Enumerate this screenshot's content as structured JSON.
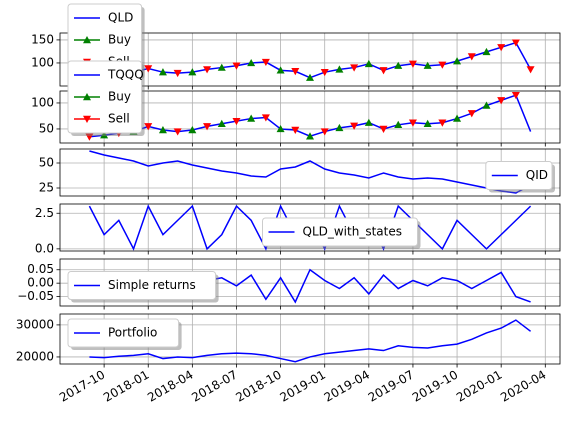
{
  "chart_data": [
    {
      "type": "line",
      "x": [
        "2017-09",
        "2017-10",
        "2017-11",
        "2017-12",
        "2018-01",
        "2018-02",
        "2018-03",
        "2018-04",
        "2018-05",
        "2018-06",
        "2018-07",
        "2018-08",
        "2018-09",
        "2018-10",
        "2018-11",
        "2018-12",
        "2019-01",
        "2019-02",
        "2019-03",
        "2019-04",
        "2019-05",
        "2019-06",
        "2019-07",
        "2019-08",
        "2019-09",
        "2019-10",
        "2019-11",
        "2019-12",
        "2020-01",
        "2020-02",
        "2020-03"
      ],
      "series": [
        {
          "name": "QLD",
          "color": "#0000ff",
          "values": [
            70,
            74,
            78,
            80,
            88,
            80,
            78,
            80,
            86,
            90,
            94,
            100,
            102,
            84,
            82,
            68,
            80,
            86,
            90,
            98,
            84,
            94,
            98,
            94,
            96,
            104,
            114,
            124,
            134,
            144,
            86
          ]
        },
        {
          "name": "Buy",
          "color": "#008000",
          "marker": "up",
          "values": [
            null,
            74,
            null,
            80,
            null,
            80,
            null,
            80,
            null,
            90,
            null,
            100,
            null,
            84,
            null,
            68,
            null,
            86,
            null,
            98,
            null,
            94,
            null,
            94,
            null,
            104,
            null,
            124,
            null,
            null,
            null
          ]
        },
        {
          "name": "Sell",
          "color": "#ff0000",
          "marker": "down",
          "values": [
            70,
            null,
            78,
            null,
            88,
            null,
            78,
            null,
            86,
            null,
            94,
            null,
            102,
            null,
            82,
            null,
            80,
            null,
            90,
            null,
            84,
            null,
            98,
            null,
            96,
            null,
            114,
            null,
            134,
            144,
            86
          ]
        }
      ],
      "xlim": [
        "2017-07",
        "2020-05"
      ],
      "xticks": [
        "2017-10",
        "2018-01",
        "2018-04",
        "2018-07",
        "2018-10",
        "2019-01",
        "2019-04",
        "2019-07",
        "2019-10",
        "2020-01",
        "2020-04"
      ],
      "ylim": [
        50,
        165
      ],
      "yticks": [
        100,
        150
      ],
      "grid": true,
      "legend": "upper left"
    },
    {
      "type": "line",
      "x": [
        "2017-09",
        "2017-10",
        "2017-11",
        "2017-12",
        "2018-01",
        "2018-02",
        "2018-03",
        "2018-04",
        "2018-05",
        "2018-06",
        "2018-07",
        "2018-08",
        "2018-09",
        "2018-10",
        "2018-11",
        "2018-12",
        "2019-01",
        "2019-02",
        "2019-03",
        "2019-04",
        "2019-05",
        "2019-06",
        "2019-07",
        "2019-08",
        "2019-09",
        "2019-10",
        "2019-11",
        "2019-12",
        "2020-01",
        "2020-02",
        "2020-03"
      ],
      "series": [
        {
          "name": "TQQQ",
          "color": "#0000ff",
          "values": [
            35,
            38,
            42,
            45,
            55,
            48,
            45,
            48,
            55,
            60,
            65,
            70,
            72,
            50,
            48,
            36,
            45,
            52,
            56,
            62,
            50,
            58,
            62,
            60,
            62,
            70,
            80,
            95,
            105,
            115,
            45
          ]
        },
        {
          "name": "Buy",
          "color": "#008000",
          "marker": "up",
          "values": [
            null,
            38,
            null,
            45,
            null,
            48,
            null,
            48,
            null,
            60,
            null,
            70,
            null,
            50,
            null,
            36,
            null,
            52,
            null,
            62,
            null,
            58,
            null,
            60,
            null,
            70,
            null,
            95,
            null,
            null,
            null
          ]
        },
        {
          "name": "Sell",
          "color": "#ff0000",
          "marker": "down",
          "values": [
            35,
            null,
            42,
            null,
            55,
            null,
            45,
            null,
            55,
            null,
            65,
            null,
            72,
            null,
            48,
            null,
            45,
            null,
            56,
            null,
            50,
            null,
            62,
            null,
            62,
            null,
            80,
            null,
            105,
            115,
            null
          ]
        }
      ],
      "xlim": [
        "2017-07",
        "2020-05"
      ],
      "xticks": [
        "2017-10",
        "2018-01",
        "2018-04",
        "2018-07",
        "2018-10",
        "2019-01",
        "2019-04",
        "2019-07",
        "2019-10",
        "2020-01",
        "2020-04"
      ],
      "ylim": [
        23,
        123
      ],
      "yticks": [
        50,
        100
      ],
      "grid": true,
      "legend": "upper left"
    },
    {
      "type": "line",
      "x": [
        "2017-09",
        "2017-10",
        "2017-11",
        "2017-12",
        "2018-01",
        "2018-02",
        "2018-03",
        "2018-04",
        "2018-05",
        "2018-06",
        "2018-07",
        "2018-08",
        "2018-09",
        "2018-10",
        "2018-11",
        "2018-12",
        "2019-01",
        "2019-02",
        "2019-03",
        "2019-04",
        "2019-05",
        "2019-06",
        "2019-07",
        "2019-08",
        "2019-09",
        "2019-10",
        "2019-11",
        "2019-12",
        "2020-01",
        "2020-02",
        "2020-03"
      ],
      "series": [
        {
          "name": "QID",
          "color": "#0000ff",
          "values": [
            62,
            58,
            55,
            52,
            47,
            50,
            52,
            48,
            45,
            42,
            40,
            37,
            36,
            44,
            46,
            52,
            44,
            40,
            38,
            35,
            40,
            36,
            34,
            35,
            34,
            31,
            28,
            25,
            22,
            20,
            28
          ]
        }
      ],
      "xlim": [
        "2017-07",
        "2020-05"
      ],
      "xticks": [
        "2017-10",
        "2018-01",
        "2018-04",
        "2018-07",
        "2018-10",
        "2019-01",
        "2019-04",
        "2019-07",
        "2019-10",
        "2020-01",
        "2020-04"
      ],
      "ylim": [
        17,
        64
      ],
      "yticks": [
        25,
        50
      ],
      "grid": true,
      "legend": "center right"
    },
    {
      "type": "line",
      "x": [
        "2017-09",
        "2017-10",
        "2017-11",
        "2017-12",
        "2018-01",
        "2018-02",
        "2018-03",
        "2018-04",
        "2018-05",
        "2018-06",
        "2018-07",
        "2018-08",
        "2018-09",
        "2018-10",
        "2018-11",
        "2018-12",
        "2019-01",
        "2019-02",
        "2019-03",
        "2019-04",
        "2019-05",
        "2019-06",
        "2019-07",
        "2019-08",
        "2019-09",
        "2019-10",
        "2019-11",
        "2019-12",
        "2020-01",
        "2020-02",
        "2020-03"
      ],
      "series": [
        {
          "name": "QLD_with_states",
          "color": "#0000ff",
          "values": [
            3,
            1,
            2,
            0,
            3,
            1,
            2,
            3,
            0,
            1,
            3,
            2,
            0,
            3,
            1,
            2,
            0,
            3,
            1,
            2,
            0,
            3,
            2,
            1,
            0,
            2,
            1,
            0,
            1,
            2,
            3
          ]
        }
      ],
      "xlim": [
        "2017-07",
        "2020-05"
      ],
      "xticks": [
        "2017-10",
        "2018-01",
        "2018-04",
        "2018-07",
        "2018-10",
        "2019-01",
        "2019-04",
        "2019-07",
        "2019-10",
        "2020-01",
        "2020-04"
      ],
      "ylim": [
        -0.15,
        3.15
      ],
      "yticks": [
        {
          "value": 0,
          "label": "0.0"
        },
        {
          "value": 2.5,
          "label": "2.5"
        }
      ],
      "grid": true,
      "legend": "lower center"
    },
    {
      "type": "line",
      "x": [
        "2017-09",
        "2017-10",
        "2017-11",
        "2017-12",
        "2018-01",
        "2018-02",
        "2018-03",
        "2018-04",
        "2018-05",
        "2018-06",
        "2018-07",
        "2018-08",
        "2018-09",
        "2018-10",
        "2018-11",
        "2018-12",
        "2019-01",
        "2019-02",
        "2019-03",
        "2019-04",
        "2019-05",
        "2019-06",
        "2019-07",
        "2019-08",
        "2019-09",
        "2019-10",
        "2019-11",
        "2019-12",
        "2020-01",
        "2020-02",
        "2020-03"
      ],
      "series": [
        {
          "name": "Simple returns",
          "color": "#0000ff",
          "values": [
            0.01,
            -0.02,
            0.02,
            -0.01,
            0.03,
            -0.05,
            0.02,
            -0.02,
            0.01,
            0.02,
            -0.01,
            0.03,
            -0.06,
            0.02,
            -0.07,
            0.05,
            0.01,
            -0.02,
            0.02,
            -0.04,
            0.03,
            -0.02,
            0.01,
            -0.01,
            0.02,
            0.01,
            -0.02,
            0.01,
            0.04,
            -0.05,
            -0.07
          ]
        }
      ],
      "xlim": [
        "2017-07",
        "2020-05"
      ],
      "xticks": [
        "2017-10",
        "2018-01",
        "2018-04",
        "2018-07",
        "2018-10",
        "2019-01",
        "2019-04",
        "2019-07",
        "2019-10",
        "2020-01",
        "2020-04"
      ],
      "ylim": [
        -0.085,
        0.09
      ],
      "yticks": [
        {
          "value": -0.05,
          "label": "−0.05"
        },
        {
          "value": 0,
          "label": "0.00"
        },
        0.05
      ],
      "grid": true,
      "legend": "center left"
    },
    {
      "type": "line",
      "x": [
        "2017-09",
        "2017-10",
        "2017-11",
        "2017-12",
        "2018-01",
        "2018-02",
        "2018-03",
        "2018-04",
        "2018-05",
        "2018-06",
        "2018-07",
        "2018-08",
        "2018-09",
        "2018-10",
        "2018-11",
        "2018-12",
        "2019-01",
        "2019-02",
        "2019-03",
        "2019-04",
        "2019-05",
        "2019-06",
        "2019-07",
        "2019-08",
        "2019-09",
        "2019-10",
        "2019-11",
        "2019-12",
        "2020-01",
        "2020-02",
        "2020-03"
      ],
      "series": [
        {
          "name": "Portfolio",
          "color": "#0000ff",
          "values": [
            20000,
            19800,
            20200,
            20500,
            21000,
            19500,
            20000,
            19800,
            20500,
            21000,
            21200,
            21000,
            20500,
            19500,
            18500,
            20000,
            21000,
            21500,
            22000,
            22500,
            22000,
            23500,
            23000,
            22800,
            23500,
            24000,
            25500,
            27500,
            29000,
            31500,
            28000
          ]
        }
      ],
      "xlim": [
        "2017-07",
        "2020-05"
      ],
      "xticks": [
        "2017-10",
        "2018-01",
        "2018-04",
        "2018-07",
        "2018-10",
        "2019-01",
        "2019-04",
        "2019-07",
        "2019-10",
        "2020-01",
        "2020-04"
      ],
      "ylim": [
        17800,
        33400
      ],
      "yticks": [
        20000,
        30000
      ],
      "grid": true,
      "legend": "upper left"
    }
  ]
}
